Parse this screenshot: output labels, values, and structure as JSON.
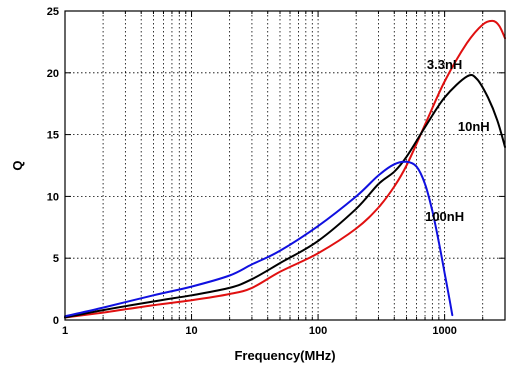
{
  "chart_data": {
    "type": "line",
    "xlabel": "Frequency(MHz)",
    "ylabel": "Q",
    "xscale": "log",
    "xlim": [
      1,
      3000
    ],
    "ylim": [
      0,
      25
    ],
    "grid": true,
    "x_ticks": [
      {
        "value": 1,
        "label": "1"
      },
      {
        "value": 10,
        "label": "10"
      },
      {
        "value": 100,
        "label": "100"
      },
      {
        "value": 1000,
        "label": "1000"
      }
    ],
    "y_ticks": [
      {
        "value": 0,
        "label": "0"
      },
      {
        "value": 5,
        "label": "5"
      },
      {
        "value": 10,
        "label": "10"
      },
      {
        "value": 15,
        "label": "15"
      },
      {
        "value": 20,
        "label": "20"
      },
      {
        "value": 25,
        "label": "25"
      }
    ],
    "series": [
      {
        "name": "3.3nH",
        "color": "#e01010",
        "label_at": {
          "x": 1000,
          "y": 20.3
        },
        "points": [
          [
            1,
            0.2
          ],
          [
            2,
            0.6
          ],
          [
            5,
            1.2
          ],
          [
            10,
            1.6
          ],
          [
            20,
            2.1
          ],
          [
            30,
            2.6
          ],
          [
            50,
            3.9
          ],
          [
            100,
            5.4
          ],
          [
            200,
            7.4
          ],
          [
            300,
            9.1
          ],
          [
            400,
            10.8
          ],
          [
            500,
            12.5
          ],
          [
            700,
            15.8
          ],
          [
            1000,
            19.3
          ],
          [
            1500,
            22.4
          ],
          [
            2000,
            23.9
          ],
          [
            2400,
            24.2
          ],
          [
            2700,
            23.8
          ],
          [
            3000,
            22.8
          ]
        ]
      },
      {
        "name": "10nH",
        "color": "#000000",
        "label_at": {
          "x": 1700,
          "y": 15.3
        },
        "points": [
          [
            1,
            0.2
          ],
          [
            2,
            0.8
          ],
          [
            5,
            1.5
          ],
          [
            10,
            2.0
          ],
          [
            20,
            2.6
          ],
          [
            30,
            3.3
          ],
          [
            50,
            4.6
          ],
          [
            100,
            6.4
          ],
          [
            200,
            9.0
          ],
          [
            300,
            11.0
          ],
          [
            400,
            12.0
          ],
          [
            500,
            13.2
          ],
          [
            700,
            15.6
          ],
          [
            1000,
            18.0
          ],
          [
            1500,
            19.7
          ],
          [
            1800,
            19.5
          ],
          [
            2200,
            18.0
          ],
          [
            2600,
            16.2
          ],
          [
            3000,
            14.0
          ]
        ]
      },
      {
        "name": "100nH",
        "color": "#1010e0",
        "label_at": {
          "x": 1000,
          "y": 8.0
        },
        "points": [
          [
            1,
            0.3
          ],
          [
            2,
            1.0
          ],
          [
            5,
            2.0
          ],
          [
            10,
            2.7
          ],
          [
            20,
            3.6
          ],
          [
            30,
            4.5
          ],
          [
            50,
            5.6
          ],
          [
            100,
            7.6
          ],
          [
            200,
            10.0
          ],
          [
            300,
            11.7
          ],
          [
            400,
            12.6
          ],
          [
            500,
            12.8
          ],
          [
            600,
            12.4
          ],
          [
            700,
            11.0
          ],
          [
            800,
            8.8
          ],
          [
            900,
            6.3
          ],
          [
            1000,
            3.8
          ],
          [
            1100,
            1.5
          ],
          [
            1150,
            0.4
          ]
        ]
      }
    ]
  }
}
